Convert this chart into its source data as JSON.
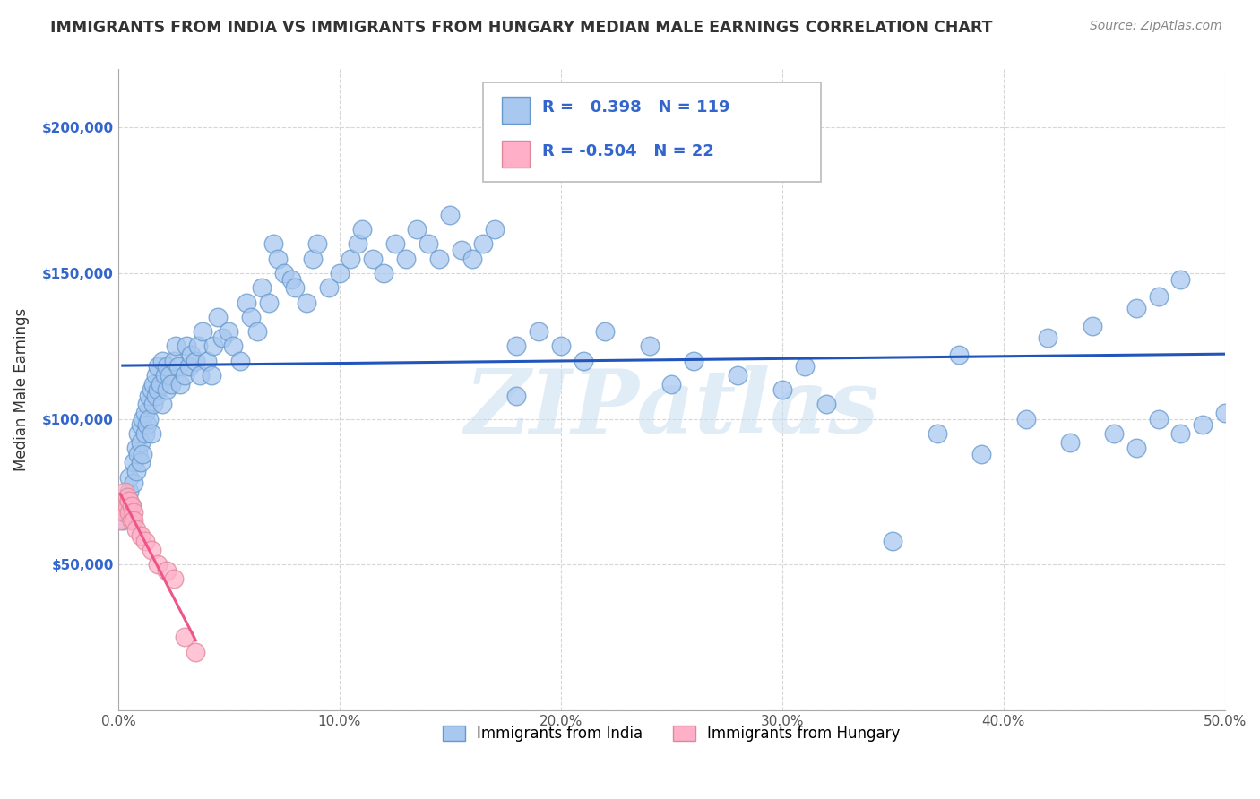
{
  "title": "IMMIGRANTS FROM INDIA VS IMMIGRANTS FROM HUNGARY MEDIAN MALE EARNINGS CORRELATION CHART",
  "source": "Source: ZipAtlas.com",
  "ylabel": "Median Male Earnings",
  "xlim": [
    0.0,
    0.5
  ],
  "ylim": [
    0,
    220000
  ],
  "xticks": [
    0.0,
    0.1,
    0.2,
    0.3,
    0.4,
    0.5
  ],
  "xtick_labels": [
    "0.0%",
    "10.0%",
    "20.0%",
    "30.0%",
    "40.0%",
    "50.0%"
  ],
  "yticks": [
    0,
    50000,
    100000,
    150000,
    200000
  ],
  "ytick_labels": [
    "",
    "$50,000",
    "$100,000",
    "$150,000",
    "$200,000"
  ],
  "india_color": "#a8c8f0",
  "hungary_color": "#ffb0c8",
  "india_edge": "#6699cc",
  "hungary_edge": "#dd8899",
  "india_R": 0.398,
  "india_N": 119,
  "hungary_R": -0.504,
  "hungary_N": 22,
  "india_line_color": "#2255bb",
  "hungary_line_color": "#ee5588",
  "watermark": "ZIPatlas",
  "watermark_color": "#c8ddf0",
  "background_color": "#ffffff",
  "grid_color": "#cccccc",
  "legend_label_india": "Immigrants from India",
  "legend_label_hungary": "Immigrants from Hungary",
  "india_x": [
    0.002,
    0.003,
    0.004,
    0.005,
    0.005,
    0.006,
    0.007,
    0.007,
    0.008,
    0.008,
    0.009,
    0.009,
    0.01,
    0.01,
    0.01,
    0.011,
    0.011,
    0.012,
    0.012,
    0.013,
    0.013,
    0.014,
    0.014,
    0.015,
    0.015,
    0.016,
    0.016,
    0.017,
    0.017,
    0.018,
    0.018,
    0.019,
    0.02,
    0.02,
    0.021,
    0.022,
    0.022,
    0.023,
    0.024,
    0.025,
    0.026,
    0.027,
    0.028,
    0.03,
    0.031,
    0.032,
    0.033,
    0.035,
    0.036,
    0.037,
    0.038,
    0.04,
    0.042,
    0.043,
    0.045,
    0.047,
    0.05,
    0.052,
    0.055,
    0.058,
    0.06,
    0.063,
    0.065,
    0.068,
    0.07,
    0.072,
    0.075,
    0.078,
    0.08,
    0.085,
    0.088,
    0.09,
    0.095,
    0.1,
    0.105,
    0.108,
    0.11,
    0.115,
    0.12,
    0.125,
    0.13,
    0.135,
    0.14,
    0.145,
    0.15,
    0.155,
    0.16,
    0.165,
    0.17,
    0.18,
    0.19,
    0.2,
    0.21,
    0.22,
    0.24,
    0.26,
    0.28,
    0.3,
    0.32,
    0.35,
    0.37,
    0.39,
    0.41,
    0.43,
    0.45,
    0.46,
    0.47,
    0.48,
    0.49,
    0.5,
    0.18,
    0.25,
    0.31,
    0.38,
    0.42,
    0.44,
    0.46,
    0.47,
    0.48
  ],
  "india_y": [
    65000,
    72000,
    68000,
    75000,
    80000,
    70000,
    85000,
    78000,
    82000,
    90000,
    88000,
    95000,
    92000,
    98000,
    85000,
    100000,
    88000,
    95000,
    102000,
    98000,
    105000,
    100000,
    108000,
    110000,
    95000,
    112000,
    105000,
    108000,
    115000,
    110000,
    118000,
    112000,
    105000,
    120000,
    115000,
    110000,
    118000,
    115000,
    112000,
    120000,
    125000,
    118000,
    112000,
    115000,
    125000,
    118000,
    122000,
    120000,
    125000,
    115000,
    130000,
    120000,
    115000,
    125000,
    135000,
    128000,
    130000,
    125000,
    120000,
    140000,
    135000,
    130000,
    145000,
    140000,
    160000,
    155000,
    150000,
    148000,
    145000,
    140000,
    155000,
    160000,
    145000,
    150000,
    155000,
    160000,
    165000,
    155000,
    150000,
    160000,
    155000,
    165000,
    160000,
    155000,
    170000,
    158000,
    155000,
    160000,
    165000,
    125000,
    130000,
    125000,
    120000,
    130000,
    125000,
    120000,
    115000,
    110000,
    105000,
    58000,
    95000,
    88000,
    100000,
    92000,
    95000,
    90000,
    100000,
    95000,
    98000,
    102000,
    108000,
    112000,
    118000,
    122000,
    128000,
    132000,
    138000,
    142000,
    148000
  ],
  "hungary_x": [
    0.001,
    0.002,
    0.002,
    0.003,
    0.003,
    0.004,
    0.004,
    0.005,
    0.005,
    0.006,
    0.006,
    0.007,
    0.007,
    0.008,
    0.01,
    0.012,
    0.015,
    0.018,
    0.022,
    0.025,
    0.03,
    0.035
  ],
  "hungary_y": [
    65000,
    70000,
    72000,
    68000,
    75000,
    70000,
    73000,
    68000,
    72000,
    65000,
    70000,
    68000,
    65000,
    62000,
    60000,
    58000,
    55000,
    50000,
    48000,
    45000,
    25000,
    20000
  ]
}
